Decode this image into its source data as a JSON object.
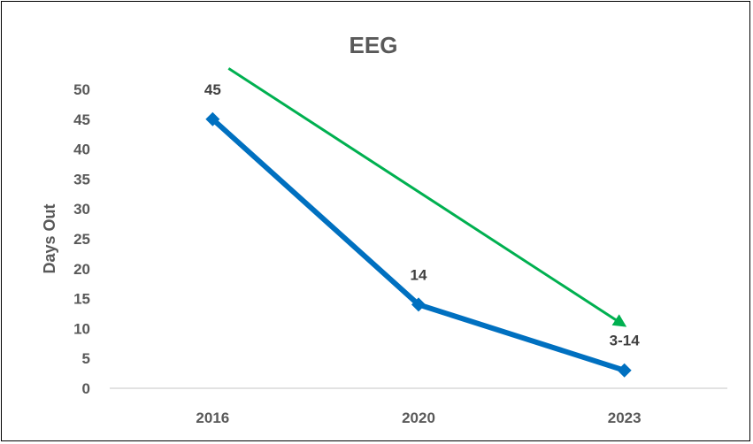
{
  "chart_data": {
    "type": "line",
    "title": "EEG",
    "xlabel": "",
    "ylabel": "Days Out",
    "categories": [
      "2016",
      "2020",
      "2023"
    ],
    "ylim": [
      0,
      50
    ],
    "yticks": [
      0,
      5,
      10,
      15,
      20,
      25,
      30,
      35,
      40,
      45,
      50
    ],
    "grid": false,
    "series": [
      {
        "values": [
          45,
          14,
          3
        ],
        "data_labels": [
          "45",
          "14",
          "3-14"
        ],
        "color": "#0070C0",
        "marker": "diamond"
      }
    ],
    "annotations": [
      {
        "type": "trend-arrow",
        "color": "#00B050",
        "from": {
          "x": "2016",
          "y": 53.5
        },
        "to": {
          "x": "2023",
          "y": 10.5
        }
      }
    ]
  }
}
